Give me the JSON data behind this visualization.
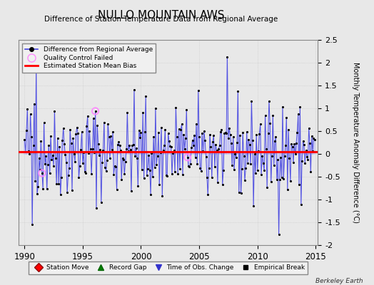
{
  "title": "NULLO MOUNTAIN AWS",
  "subtitle": "Difference of Station Temperature Data from Regional Average",
  "ylabel": "Monthly Temperature Anomaly Difference (°C)",
  "xlabel_years": [
    1990,
    1995,
    2000,
    2005,
    2010,
    2015
  ],
  "ylim": [
    -2.0,
    2.5
  ],
  "yticks": [
    -2.0,
    -1.5,
    -1.0,
    -0.5,
    0.0,
    0.5,
    1.0,
    1.5,
    2.0,
    2.5
  ],
  "xlim": [
    1989.5,
    2015.2
  ],
  "bias_line": 0.05,
  "line_color": "#4444dd",
  "line_color_fill": "#aaaaff",
  "bias_color": "#ff0000",
  "dot_color": "#000000",
  "qc_fail_color": "#ff88ff",
  "background_color": "#e8e8e8",
  "plot_bg_color": "#e8e8e8",
  "watermark": "Berkeley Earth",
  "seed": 42,
  "mean": 0.05,
  "std": 0.52,
  "qc_indices": [
    18,
    73,
    168
  ],
  "n_points": 300
}
